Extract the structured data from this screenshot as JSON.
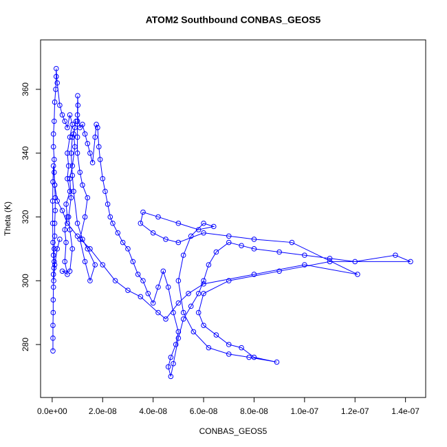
{
  "chart_data": {
    "type": "line",
    "title": "ATOM2 Southbound CONBAS_GEOS5",
    "xlabel": "CONBAS_GEOS5",
    "ylabel": "Theta (K)",
    "color": "#0000ff",
    "marker": "open-circle",
    "xlim": [
      -4.6e-09,
      1.48e-07
    ],
    "ylim": [
      263.4,
      375.5
    ],
    "xticks": [
      {
        "value": 0,
        "label": "0.0e+00"
      },
      {
        "value": 2e-08,
        "label": "2.0e-08"
      },
      {
        "value": 4e-08,
        "label": "4.0e-08"
      },
      {
        "value": 6e-08,
        "label": "6.0e-08"
      },
      {
        "value": 8e-08,
        "label": "8.0e-08"
      },
      {
        "value": 1e-07,
        "label": "1.0e-07"
      },
      {
        "value": 1.2e-07,
        "label": "1.2e-07"
      },
      {
        "value": 1.4e-07,
        "label": "1.4e-07"
      }
    ],
    "yticks": [
      280,
      300,
      320,
      340,
      360
    ],
    "x": [
      3e-10,
      3e-10,
      3e-10,
      4e-10,
      4e-10,
      5e-10,
      5e-10,
      8e-10,
      8e-10,
      1e-09,
      1e-09,
      1.2e-09,
      1.2e-09,
      1e-09,
      8e-10,
      8e-10,
      5e-10,
      5e-10,
      8e-10,
      1e-09,
      1.4e-09,
      1.6e-09,
      1.6e-09,
      2e-09,
      3e-09,
      4e-09,
      5e-09,
      6e-09,
      7e-09,
      8e-09,
      7e-09,
      6e-09,
      6.5e-09,
      6e-09,
      7e-09,
      5.5e-09,
      6e-09,
      5e-09,
      5.5e-09,
      5e-09,
      6e-09,
      4e-09,
      7e-09,
      8e-09,
      7e-09,
      6.5e-09,
      7.5e-09,
      7e-09,
      8e-09,
      9e-09,
      8.5e-09,
      9.5e-09,
      9e-09,
      8e-09,
      7.5e-09,
      8e-09,
      8.5e-09,
      1e-08,
      1.2e-08,
      1.4e-08,
      1.7e-08,
      1.5e-08,
      1.3e-08,
      1.1e-08,
      1.3e-08,
      1.4e-08,
      1.2e-08,
      1.1e-08,
      1e-08,
      1e-08,
      1e-08,
      1.02e-08,
      1.01e-08,
      1e-08,
      1.1e-08,
      1.2e-08,
      1.3e-08,
      1.4e-08,
      1.5e-08,
      1.6e-08,
      1.7e-08,
      1.75e-08,
      1.8e-08,
      1.85e-08,
      1.9e-08,
      2e-08,
      2.1e-08,
      2.2e-08,
      2.3e-08,
      2.4e-08,
      2.6e-08,
      2.8e-08,
      3e-08,
      3.2e-08,
      3.4e-08,
      3.6e-08,
      3.8e-08,
      4e-08,
      4.2e-08,
      4.4e-08,
      4.6e-08,
      4.8e-08,
      5e-08,
      4.9e-08,
      4.7e-08,
      4.6e-08,
      4.7e-08,
      4.8e-08,
      5e-08,
      5.2e-08,
      5.5e-08,
      5.8e-08,
      6e-08,
      6.2e-08,
      6.5e-08,
      7e-08,
      7.5e-08,
      8e-08,
      9e-08,
      1e-07,
      1.1e-07,
      1.2e-07,
      1.36e-07,
      1.42e-07,
      1.1e-07,
      9e-08,
      7e-08,
      6e-08,
      5.8e-08,
      6e-08,
      6.5e-08,
      7e-08,
      7.5e-08,
      8e-08,
      8.9e-08,
      7.8e-08,
      7e-08,
      6.2e-08,
      5.6e-08,
      5.2e-08,
      5e-08,
      5.2e-08,
      5.5e-08,
      6e-08,
      6.4e-08,
      5.8e-08,
      5e-08,
      4.2e-08,
      3.6e-08,
      3.5e-08,
      4e-08,
      4.5e-08,
      5e-08,
      6e-08,
      7e-08,
      8e-08,
      9.5e-08,
      1.21e-07,
      1e-07,
      8e-08,
      6e-08,
      5.4e-08,
      5e-08,
      4.5e-08,
      4.2e-08,
      3.5e-08,
      3e-08,
      2.5e-08,
      2e-08,
      1.5e-08,
      1e-08,
      6e-09,
      4e-09,
      2e-09,
      1e-09,
      5e-10,
      3e-10,
      2e-10,
      2e-10,
      3e-10,
      5e-10,
      7e-10,
      6e-10,
      1e-09,
      2e-09,
      3e-09
    ],
    "series": [
      {
        "name": "Theta (K)",
        "color": "#0000ff",
        "values": [
          278,
          282,
          286,
          290,
          294,
          298,
          302,
          306,
          310,
          314,
          318,
          322,
          326,
          330,
          334,
          338,
          342,
          346,
          350,
          356,
          360,
          364,
          366.5,
          362,
          355,
          352,
          350,
          348,
          352,
          349,
          345,
          340,
          336,
          332,
          328,
          324,
          320,
          316,
          312,
          306,
          302,
          303,
          303,
          310,
          316,
          320,
          326,
          332,
          336,
          342,
          346,
          350,
          348,
          345,
          340,
          333,
          328,
          318,
          313,
          310,
          305,
          300,
          306,
          313,
          320,
          326,
          330,
          334,
          340,
          345,
          350,
          355,
          358,
          352,
          348,
          349,
          346,
          343,
          340,
          337,
          345,
          349,
          348,
          342,
          338,
          332,
          328,
          324,
          320,
          318,
          315,
          312,
          310,
          306,
          302,
          300,
          296,
          293,
          298,
          303,
          298,
          290,
          284,
          280,
          276,
          273,
          270,
          274,
          282,
          288,
          292,
          296,
          300,
          305,
          309,
          312,
          311,
          310,
          309,
          308,
          307,
          306,
          308,
          306,
          306,
          303,
          300,
          296,
          290,
          286,
          283,
          280,
          279,
          276,
          274.5,
          276,
          277,
          279,
          284,
          290,
          300,
          308,
          314,
          318,
          317,
          316,
          318,
          320,
          321.5,
          318,
          315,
          313,
          312,
          315,
          314,
          313,
          312,
          302,
          305,
          302,
          299,
          296,
          293,
          288,
          290,
          295,
          297,
          300,
          305,
          310,
          314,
          318,
          322,
          325,
          330,
          336,
          331,
          325,
          318,
          312,
          308,
          304,
          300,
          305,
          310,
          313
        ]
      }
    ]
  }
}
